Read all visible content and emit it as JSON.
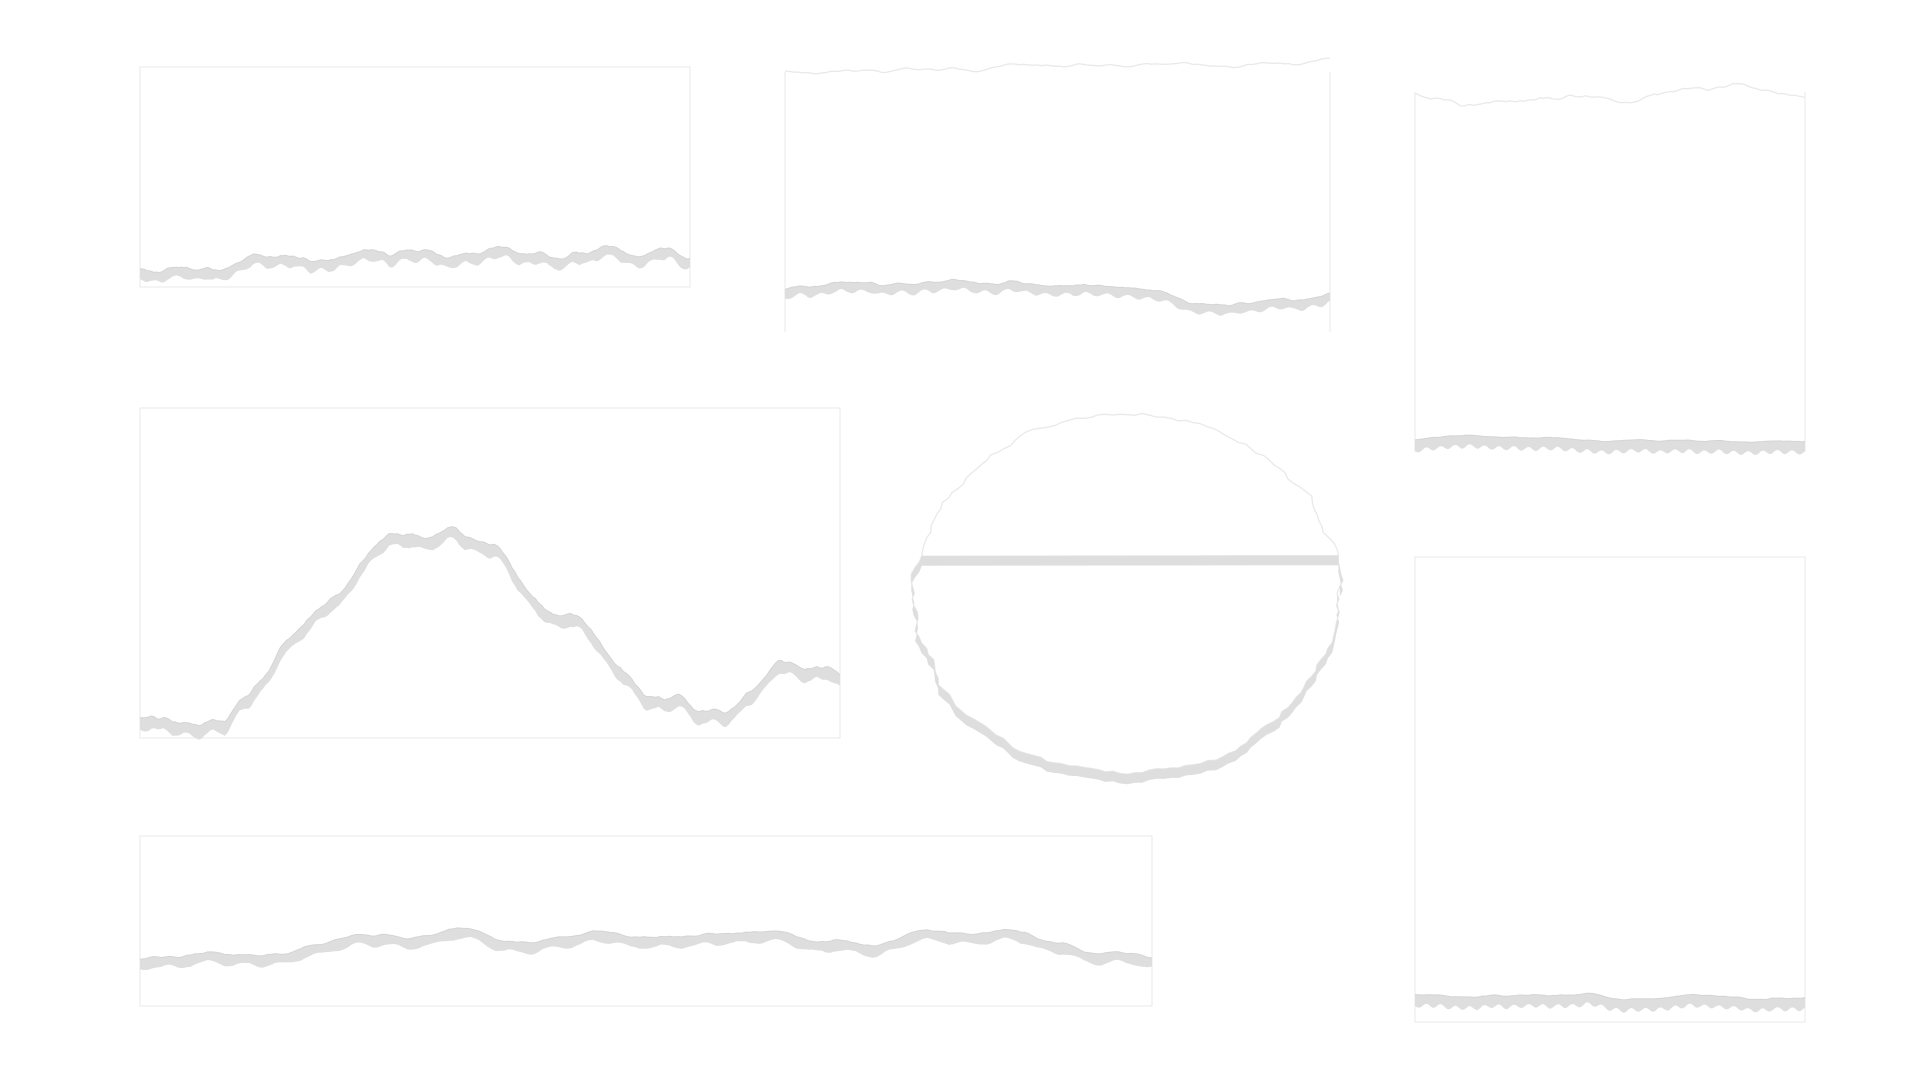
{
  "canvas": {
    "background": "#ffffff",
    "line_color": "#ececec",
    "ribbon_color": "#dedede"
  },
  "panels": [
    {
      "name": "panel-top-left",
      "shape": "rect",
      "top_edge": "straight",
      "seed": 11
    },
    {
      "name": "panel-top-middle",
      "shape": "rect",
      "top_edge": "jagged",
      "seed": 23
    },
    {
      "name": "panel-right-upper",
      "shape": "rect",
      "top_edge": "jagged",
      "seed": 37
    },
    {
      "name": "panel-middle-left",
      "shape": "rect",
      "top_edge": "straight",
      "seed": 41
    },
    {
      "name": "panel-middle-blob",
      "shape": "blob",
      "top_edge": "jagged",
      "seed": 53
    },
    {
      "name": "panel-right-lower",
      "shape": "rect",
      "top_edge": "straight",
      "seed": 67
    },
    {
      "name": "panel-bottom-wide",
      "shape": "rect",
      "top_edge": "straight",
      "seed": 79
    }
  ]
}
